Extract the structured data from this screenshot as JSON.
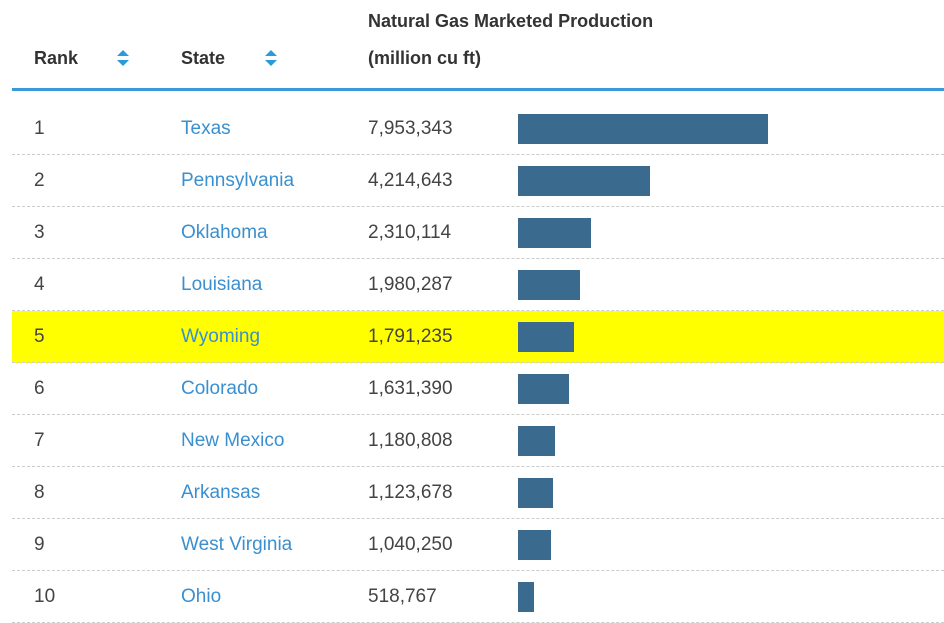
{
  "table": {
    "columns": {
      "rank": "Rank",
      "state": "State",
      "production": "Natural Gas Marketed Production",
      "production_unit": "(million cu ft)"
    },
    "rows": [
      {
        "rank": 1,
        "state": "Texas",
        "value": 7953343,
        "value_label": "7,953,343"
      },
      {
        "rank": 2,
        "state": "Pennsylvania",
        "value": 4214643,
        "value_label": "4,214,643"
      },
      {
        "rank": 3,
        "state": "Oklahoma",
        "value": 2310114,
        "value_label": "2,310,114"
      },
      {
        "rank": 4,
        "state": "Louisiana",
        "value": 1980287,
        "value_label": "1,980,287"
      },
      {
        "rank": 5,
        "state": "Wyoming",
        "value": 1791235,
        "value_label": "1,791,235",
        "highlighted": true
      },
      {
        "rank": 6,
        "state": "Colorado",
        "value": 1631390,
        "value_label": "1,631,390"
      },
      {
        "rank": 7,
        "state": "New Mexico",
        "value": 1180808,
        "value_label": "1,180,808"
      },
      {
        "rank": 8,
        "state": "Arkansas",
        "value": 1123678,
        "value_label": "1,123,678"
      },
      {
        "rank": 9,
        "state": "West Virginia",
        "value": 1040250,
        "value_label": "1,040,250"
      },
      {
        "rank": 10,
        "state": "Ohio",
        "value": 518767,
        "value_label": "518,767"
      }
    ],
    "bar_color": "#3b6a8f",
    "highlight_color": "#ffff00"
  }
}
